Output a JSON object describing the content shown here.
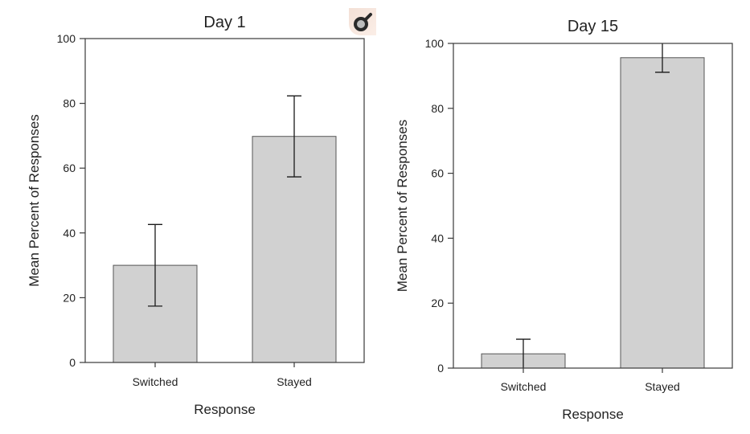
{
  "chart_data": [
    {
      "type": "bar",
      "title": "Day 1",
      "categories": [
        "Switched",
        "Stayed"
      ],
      "values": [
        30.0,
        69.8
      ],
      "error_bars": [
        12.6,
        12.5
      ],
      "xlabel": "Response",
      "ylabel": "Mean Percent of Responses",
      "ylim": [
        0,
        100
      ],
      "yticks": [
        0,
        20,
        40,
        60,
        80,
        100
      ],
      "grid": false,
      "bar_color": "#d1d1d1"
    },
    {
      "type": "bar",
      "title": "Day 15",
      "categories": [
        "Switched",
        "Stayed"
      ],
      "values": [
        4.4,
        95.6
      ],
      "error_bars": [
        4.5,
        4.5
      ],
      "xlabel": "Response",
      "ylabel": "Mean Percent of Responses",
      "ylim": [
        0,
        100
      ],
      "yticks": [
        0,
        20,
        40,
        60,
        80,
        100
      ],
      "grid": false,
      "bar_color": "#d1d1d1"
    }
  ],
  "overlay_icon": "magnifier-icon"
}
